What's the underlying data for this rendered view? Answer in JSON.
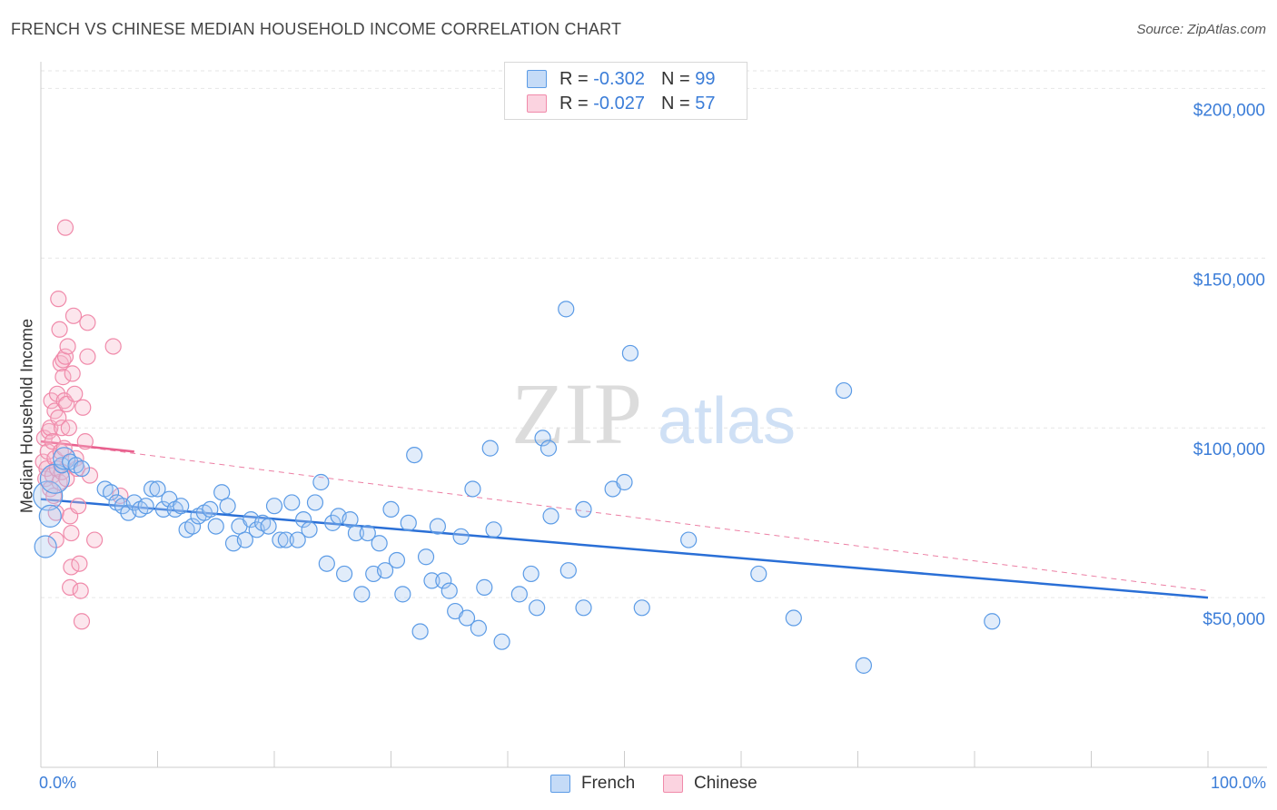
{
  "title": "FRENCH VS CHINESE MEDIAN HOUSEHOLD INCOME CORRELATION CHART",
  "source": "Source: ZipAtlas.com",
  "watermark": {
    "zip": "ZIP",
    "atlas": "atlas"
  },
  "legend": {
    "rows": [
      {
        "r_label": "R =",
        "r_value": "-0.302",
        "n_label": "N =",
        "n_value": "99"
      },
      {
        "r_label": "R =",
        "r_value": "-0.027",
        "n_label": "N =",
        "n_value": "57"
      }
    ]
  },
  "colors": {
    "french": "#5b9be6",
    "chinese": "#f08aaa",
    "french_line": "#2a6fd6",
    "chinese_line": "#e8608e",
    "axis_text": "#3b7dd8"
  },
  "chart_data": {
    "type": "scatter",
    "title": "FRENCH VS CHINESE MEDIAN HOUSEHOLD INCOME CORRELATION CHART",
    "xlabel": "",
    "ylabel": "Median Household Income",
    "xlim": [
      0,
      100
    ],
    "ylim": [
      0,
      210000
    ],
    "x_tick_labels": [
      "0.0%",
      "100.0%"
    ],
    "y_ticks": [
      50000,
      100000,
      150000,
      200000
    ],
    "y_tick_labels": [
      "$50,000",
      "$100,000",
      "$150,000",
      "$200,000"
    ],
    "grid": true,
    "legend_position": "top-center",
    "series": [
      {
        "name": "French",
        "color": "#5b9be6",
        "r": -0.302,
        "n": 99,
        "trend": {
          "x": [
            0,
            100
          ],
          "y": [
            79000,
            50000
          ]
        },
        "points": [
          [
            0.4,
            65000,
            2
          ],
          [
            0.6,
            80000,
            3
          ],
          [
            0.8,
            74000,
            2
          ],
          [
            1.2,
            85000,
            3
          ],
          [
            1.8,
            89000,
            1
          ],
          [
            2.0,
            91000,
            2
          ],
          [
            2.5,
            90000,
            1
          ],
          [
            3.0,
            89000,
            1
          ],
          [
            3.5,
            88000,
            1
          ],
          [
            5.5,
            82000,
            1
          ],
          [
            6.0,
            81000,
            1
          ],
          [
            6.5,
            78000,
            1
          ],
          [
            7.0,
            77000,
            1
          ],
          [
            7.5,
            75000,
            1
          ],
          [
            8.0,
            78000,
            1
          ],
          [
            8.5,
            76000,
            1
          ],
          [
            9.0,
            77000,
            1
          ],
          [
            9.5,
            82000,
            1
          ],
          [
            10.0,
            82000,
            1
          ],
          [
            10.5,
            76000,
            1
          ],
          [
            11.0,
            79000,
            1
          ],
          [
            11.5,
            76000,
            1
          ],
          [
            12.0,
            77000,
            1
          ],
          [
            12.5,
            70000,
            1
          ],
          [
            13.0,
            71000,
            1
          ],
          [
            13.5,
            74000,
            1
          ],
          [
            14.0,
            75000,
            1
          ],
          [
            14.5,
            76000,
            1
          ],
          [
            15.0,
            71000,
            1
          ],
          [
            15.5,
            81000,
            1
          ],
          [
            16.0,
            77000,
            1
          ],
          [
            16.5,
            66000,
            1
          ],
          [
            17.0,
            71000,
            1
          ],
          [
            17.5,
            67000,
            1
          ],
          [
            18.0,
            73000,
            1
          ],
          [
            18.5,
            70000,
            1
          ],
          [
            19.0,
            72000,
            1
          ],
          [
            19.5,
            71000,
            1
          ],
          [
            20.0,
            77000,
            1
          ],
          [
            20.5,
            67000,
            1
          ],
          [
            21.0,
            67000,
            1
          ],
          [
            21.5,
            78000,
            1
          ],
          [
            22.0,
            67000,
            1
          ],
          [
            22.5,
            73000,
            1
          ],
          [
            23.0,
            70000,
            1
          ],
          [
            23.5,
            78000,
            1
          ],
          [
            24.0,
            84000,
            1
          ],
          [
            24.5,
            60000,
            1
          ],
          [
            25.0,
            72000,
            1
          ],
          [
            25.5,
            74000,
            1
          ],
          [
            26.0,
            57000,
            1
          ],
          [
            26.5,
            73000,
            1
          ],
          [
            27.0,
            69000,
            1
          ],
          [
            27.5,
            51000,
            1
          ],
          [
            28.0,
            69000,
            1
          ],
          [
            28.5,
            57000,
            1
          ],
          [
            29.0,
            66000,
            1
          ],
          [
            29.5,
            58000,
            1
          ],
          [
            30.0,
            76000,
            1
          ],
          [
            30.5,
            61000,
            1
          ],
          [
            31.0,
            51000,
            1
          ],
          [
            31.5,
            72000,
            1
          ],
          [
            32.0,
            92000,
            1
          ],
          [
            32.5,
            40000,
            1
          ],
          [
            33.0,
            62000,
            1
          ],
          [
            33.5,
            55000,
            1
          ],
          [
            34.0,
            71000,
            1
          ],
          [
            34.5,
            55000,
            1
          ],
          [
            35.0,
            52000,
            1
          ],
          [
            35.5,
            46000,
            1
          ],
          [
            36.0,
            68000,
            1
          ],
          [
            36.5,
            44000,
            1
          ],
          [
            37.0,
            82000,
            1
          ],
          [
            37.5,
            41000,
            1
          ],
          [
            38.0,
            53000,
            1
          ],
          [
            38.5,
            94000,
            1
          ],
          [
            38.8,
            70000,
            1
          ],
          [
            39.5,
            37000,
            1
          ],
          [
            41.0,
            51000,
            1
          ],
          [
            42.0,
            57000,
            1
          ],
          [
            42.5,
            47000,
            1
          ],
          [
            43.0,
            97000,
            1
          ],
          [
            43.5,
            94000,
            1
          ],
          [
            43.7,
            74000,
            1
          ],
          [
            45.0,
            135000,
            1
          ],
          [
            45.2,
            58000,
            1
          ],
          [
            46.5,
            76000,
            1
          ],
          [
            46.5,
            47000,
            1
          ],
          [
            49.0,
            82000,
            1
          ],
          [
            50.0,
            84000,
            1
          ],
          [
            50.5,
            122000,
            1
          ],
          [
            51.5,
            47000,
            1
          ],
          [
            55.5,
            67000,
            1
          ],
          [
            61.5,
            57000,
            1
          ],
          [
            64.5,
            44000,
            1
          ],
          [
            68.8,
            111000,
            1
          ],
          [
            70.5,
            30000,
            1
          ],
          [
            81.5,
            43000,
            1
          ]
        ]
      },
      {
        "name": "Chinese",
        "color": "#f08aaa",
        "r": -0.027,
        "n": 57,
        "trend": {
          "x": [
            0,
            8
          ],
          "y": [
            96000,
            93000
          ]
        },
        "trend_extended": {
          "x": [
            0,
            100
          ],
          "y": [
            96000,
            52000
          ]
        },
        "points": [
          [
            0.2,
            90000
          ],
          [
            0.3,
            97000
          ],
          [
            0.4,
            85000
          ],
          [
            0.5,
            88000
          ],
          [
            0.6,
            93000
          ],
          [
            0.7,
            99000
          ],
          [
            0.8,
            82000
          ],
          [
            0.8,
            100000
          ],
          [
            0.9,
            108000
          ],
          [
            1.0,
            96000
          ],
          [
            1.0,
            86000
          ],
          [
            1.1,
            80000
          ],
          [
            1.2,
            105000
          ],
          [
            1.2,
            91000
          ],
          [
            1.3,
            75000
          ],
          [
            1.3,
            67000
          ],
          [
            1.4,
            110000
          ],
          [
            1.4,
            88000
          ],
          [
            1.5,
            138000
          ],
          [
            1.5,
            103000
          ],
          [
            1.6,
            129000
          ],
          [
            1.6,
            84000
          ],
          [
            1.7,
            119000
          ],
          [
            1.7,
            93000
          ],
          [
            1.8,
            100000
          ],
          [
            1.8,
            87000
          ],
          [
            1.9,
            120000
          ],
          [
            1.9,
            115000
          ],
          [
            2.0,
            108000
          ],
          [
            2.0,
            94000
          ],
          [
            2.1,
            159000
          ],
          [
            2.1,
            121000
          ],
          [
            2.2,
            107000
          ],
          [
            2.2,
            85000
          ],
          [
            2.3,
            124000
          ],
          [
            2.4,
            100000
          ],
          [
            2.5,
            74000
          ],
          [
            2.5,
            53000
          ],
          [
            2.6,
            69000
          ],
          [
            2.6,
            59000
          ],
          [
            2.7,
            116000
          ],
          [
            2.8,
            133000
          ],
          [
            2.9,
            110000
          ],
          [
            3.0,
            91000
          ],
          [
            3.1,
            88000
          ],
          [
            3.2,
            77000
          ],
          [
            3.3,
            60000
          ],
          [
            3.4,
            52000
          ],
          [
            3.5,
            43000
          ],
          [
            3.6,
            106000
          ],
          [
            3.8,
            96000
          ],
          [
            4.0,
            131000
          ],
          [
            4.0,
            121000
          ],
          [
            4.2,
            86000
          ],
          [
            4.6,
            67000
          ],
          [
            6.2,
            124000
          ],
          [
            6.8,
            80000
          ]
        ]
      }
    ]
  }
}
